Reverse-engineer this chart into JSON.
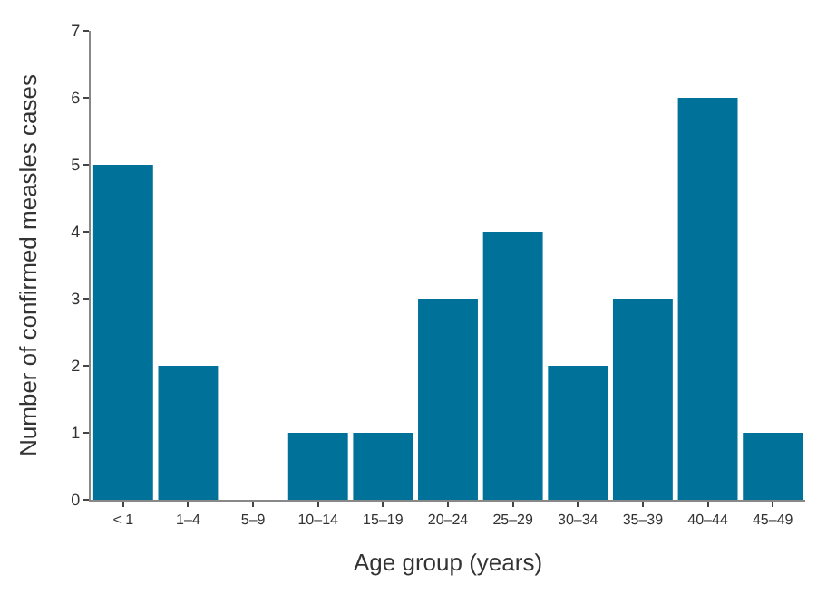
{
  "chart_data": {
    "type": "bar",
    "xlabel": "Age group (years)",
    "ylabel": "Number of confirmed measles cases",
    "categories": [
      "< 1",
      "1–4",
      "5–9",
      "10–14",
      "15–19",
      "20–24",
      "25–29",
      "30–34",
      "35–39",
      "40–44",
      "45–49"
    ],
    "values": [
      5,
      2,
      0,
      1,
      1,
      3,
      4,
      2,
      3,
      6,
      1
    ],
    "color": "#00729a",
    "ylim": [
      0,
      7
    ],
    "yticks": [
      0,
      1,
      2,
      3,
      4,
      5,
      6,
      7
    ]
  }
}
